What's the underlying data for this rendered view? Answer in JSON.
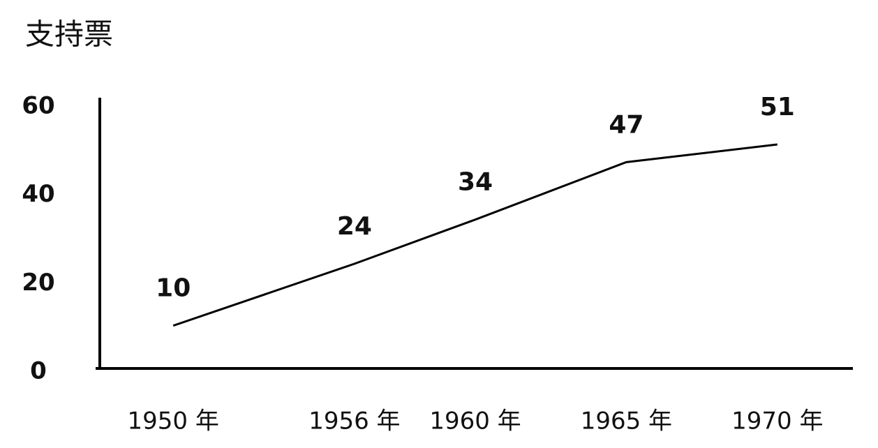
{
  "chart_data": {
    "type": "line",
    "title": "支持票",
    "x": [
      1950,
      1956,
      1960,
      1965,
      1970
    ],
    "values": [
      10,
      24,
      34,
      47,
      51
    ],
    "color": "#000000",
    "xlim": [
      1947.5,
      1972.5
    ],
    "xticks": [
      {
        "value": 1950,
        "label": "1950 年"
      },
      {
        "value": 1956,
        "label": "1956 年"
      },
      {
        "value": 1960,
        "label": "1960 年"
      },
      {
        "value": 1965,
        "label": "1965 年"
      },
      {
        "value": 1970,
        "label": "1970 年"
      }
    ],
    "ylim": [
      0,
      60
    ],
    "yticks": [
      0,
      20,
      40,
      60
    ],
    "grid": false
  }
}
